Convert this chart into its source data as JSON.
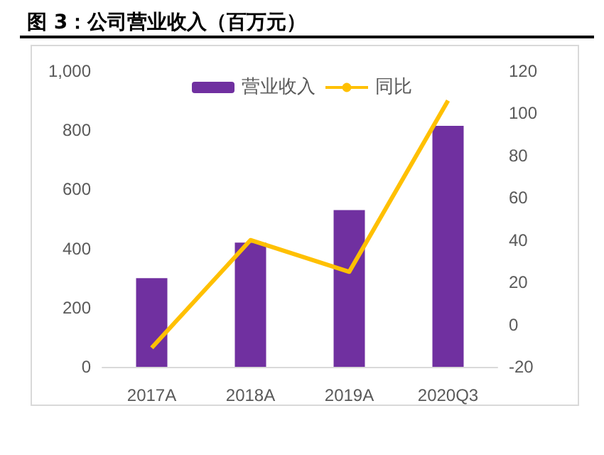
{
  "chart_data": {
    "type": "bar",
    "title": "图 3：公司营业收入（百万元）",
    "categories": [
      "2017A",
      "2018A",
      "2019A",
      "2020Q3"
    ],
    "series": [
      {
        "name": "营业收入",
        "color": "#7030a0",
        "values": [
          300,
          420,
          530,
          815
        ]
      },
      {
        "name": "同比",
        "type": "line",
        "axis": "y2",
        "color": "#ffc000",
        "values": [
          -11,
          40,
          25,
          106
        ]
      }
    ],
    "ylim": [
      0,
      1000
    ],
    "yticks": [
      0,
      200,
      400,
      600,
      800,
      {
        "value": 1000,
        "label": "1,000"
      }
    ],
    "y2lim": [
      -20,
      120
    ],
    "y2ticks": [
      -20,
      0,
      20,
      40,
      60,
      80,
      100,
      120
    ],
    "grid": false,
    "legend": "top",
    "marker": "none"
  }
}
